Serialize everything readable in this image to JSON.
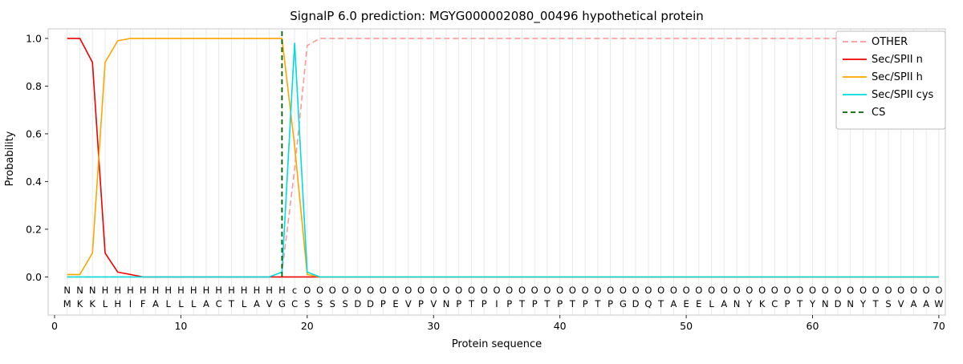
{
  "chart_data": {
    "type": "line",
    "title": "SignalP 6.0 prediction: MGYG000002080_00496 hypothetical protein",
    "xlabel": "Protein sequence",
    "ylabel": "Probability",
    "xticks": [
      0,
      10,
      20,
      30,
      40,
      50,
      60,
      70
    ],
    "yticks": [
      "0.0",
      "0.2",
      "0.4",
      "0.6",
      "0.8",
      "1.0"
    ],
    "xlim": [
      0,
      70.5
    ],
    "ylim": [
      -0.16,
      1.04
    ],
    "grid": "vertical line per residue, light gray",
    "legend_position": "upper right",
    "sequence": "MKKLHIFALLLACTLAVGCSSSSDDPEVPVNPTPIPTPTPTPTPGDQTAEELANYKCPTYNDNYTSVAAW",
    "residue_labels": "NNNHHHHHHHHHHHHHHHcOOOOOOOOOOOOOOOOOOOOOOOOOOOOOOOOOOOOOOOOOOOOOOOOOOO",
    "label_colors": {
      "N": "#ee0000",
      "H": "#ffa500",
      "c": "#00dddd",
      "O": "#8a8a8a"
    },
    "series": [
      {
        "name": "OTHER",
        "color": "#ff9896",
        "dash": "7,4",
        "values": [
          0,
          0,
          0,
          0,
          0,
          0,
          0,
          0,
          0,
          0,
          0,
          0,
          0,
          0,
          0,
          0,
          0,
          0.02,
          0.45,
          0.97,
          1,
          1,
          1,
          1,
          1,
          1,
          1,
          1,
          1,
          1,
          1,
          1,
          1,
          1,
          1,
          1,
          1,
          1,
          1,
          1,
          1,
          1,
          1,
          1,
          1,
          1,
          1,
          1,
          1,
          1,
          1,
          1,
          1,
          1,
          1,
          1,
          1,
          1,
          1,
          1,
          1,
          1,
          1,
          1,
          1,
          1,
          1,
          1,
          1,
          1
        ]
      },
      {
        "name": "Sec/SPII n",
        "color": "#ee0000",
        "dash": null,
        "values": [
          1,
          1,
          0.9,
          0.1,
          0.02,
          0.01,
          0,
          0,
          0,
          0,
          0,
          0,
          0,
          0,
          0,
          0,
          0,
          0,
          0,
          0,
          0,
          0,
          0,
          0,
          0,
          0,
          0,
          0,
          0,
          0,
          0,
          0,
          0,
          0,
          0,
          0,
          0,
          0,
          0,
          0,
          0,
          0,
          0,
          0,
          0,
          0,
          0,
          0,
          0,
          0,
          0,
          0,
          0,
          0,
          0,
          0,
          0,
          0,
          0,
          0,
          0,
          0,
          0,
          0,
          0,
          0,
          0,
          0,
          0,
          0
        ]
      },
      {
        "name": "Sec/SPII h",
        "color": "#ffa500",
        "dash": null,
        "values": [
          0.01,
          0.01,
          0.1,
          0.9,
          0.99,
          1,
          1,
          1,
          1,
          1,
          1,
          1,
          1,
          1,
          1,
          1,
          1,
          1,
          0.55,
          0.01,
          0,
          0,
          0,
          0,
          0,
          0,
          0,
          0,
          0,
          0,
          0,
          0,
          0,
          0,
          0,
          0,
          0,
          0,
          0,
          0,
          0,
          0,
          0,
          0,
          0,
          0,
          0,
          0,
          0,
          0,
          0,
          0,
          0,
          0,
          0,
          0,
          0,
          0,
          0,
          0,
          0,
          0,
          0,
          0,
          0,
          0,
          0,
          0,
          0,
          0
        ]
      },
      {
        "name": "Sec/SPII cys",
        "color": "#00dddd",
        "dash": null,
        "values": [
          0,
          0,
          0,
          0,
          0,
          0,
          0,
          0,
          0,
          0,
          0,
          0,
          0,
          0,
          0,
          0,
          0,
          0.02,
          0.98,
          0.02,
          0,
          0,
          0,
          0,
          0,
          0,
          0,
          0,
          0,
          0,
          0,
          0,
          0,
          0,
          0,
          0,
          0,
          0,
          0,
          0,
          0,
          0,
          0,
          0,
          0,
          0,
          0,
          0,
          0,
          0,
          0,
          0,
          0,
          0,
          0,
          0,
          0,
          0,
          0,
          0,
          0,
          0,
          0,
          0,
          0,
          0,
          0,
          0,
          0,
          0
        ]
      }
    ],
    "cs_marker": {
      "label": "CS",
      "x": 18,
      "color": "#006400",
      "dash": "6,4"
    }
  }
}
